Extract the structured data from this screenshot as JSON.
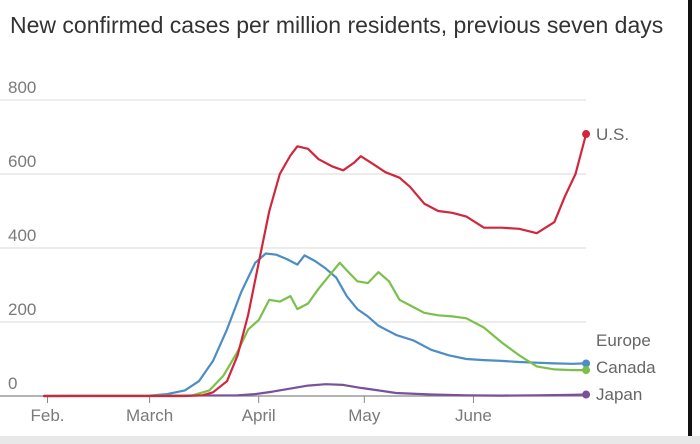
{
  "chart_data": {
    "type": "line",
    "title": "New confirmed cases per million residents, previous seven days",
    "xlabel": "",
    "ylabel": "",
    "ylim": [
      0,
      800
    ],
    "yticks": [
      0,
      200,
      400,
      600,
      800
    ],
    "x_ticks": [
      {
        "label": "Feb.",
        "day": 1
      },
      {
        "label": "March",
        "day": 30
      },
      {
        "label": "April",
        "day": 61
      },
      {
        "label": "May",
        "day": 91
      },
      {
        "label": "June",
        "day": 122
      }
    ],
    "x_range": [
      0,
      147
    ],
    "grid": true,
    "legend": "inline labels at right end of lines",
    "series": [
      {
        "name": "U.S.",
        "color": "#d0273d",
        "points": [
          [
            0,
            0
          ],
          [
            40,
            0
          ],
          [
            45,
            2
          ],
          [
            48,
            10
          ],
          [
            52,
            40
          ],
          [
            55,
            110
          ],
          [
            58,
            220
          ],
          [
            61,
            360
          ],
          [
            64,
            500
          ],
          [
            67,
            600
          ],
          [
            70,
            650
          ],
          [
            72,
            675
          ],
          [
            75,
            668
          ],
          [
            78,
            640
          ],
          [
            82,
            620
          ],
          [
            85,
            610
          ],
          [
            88,
            630
          ],
          [
            90,
            648
          ],
          [
            93,
            630
          ],
          [
            97,
            605
          ],
          [
            101,
            590
          ],
          [
            104,
            565
          ],
          [
            108,
            520
          ],
          [
            112,
            500
          ],
          [
            116,
            495
          ],
          [
            120,
            485
          ],
          [
            125,
            455
          ],
          [
            130,
            455
          ],
          [
            135,
            452
          ],
          [
            140,
            440
          ],
          [
            145,
            470
          ],
          [
            148,
            540
          ],
          [
            151,
            600
          ],
          [
            154,
            708
          ]
        ]
      },
      {
        "name": "Europe",
        "color": "#4b8dc4",
        "points": [
          [
            0,
            0
          ],
          [
            30,
            1
          ],
          [
            35,
            5
          ],
          [
            40,
            15
          ],
          [
            44,
            40
          ],
          [
            48,
            95
          ],
          [
            52,
            180
          ],
          [
            56,
            280
          ],
          [
            60,
            360
          ],
          [
            63,
            385
          ],
          [
            66,
            382
          ],
          [
            69,
            370
          ],
          [
            72,
            355
          ],
          [
            74,
            380
          ],
          [
            77,
            365
          ],
          [
            80,
            345
          ],
          [
            83,
            320
          ],
          [
            86,
            270
          ],
          [
            89,
            235
          ],
          [
            92,
            215
          ],
          [
            95,
            190
          ],
          [
            100,
            165
          ],
          [
            105,
            150
          ],
          [
            110,
            125
          ],
          [
            115,
            110
          ],
          [
            120,
            100
          ],
          [
            125,
            97
          ],
          [
            130,
            95
          ],
          [
            135,
            92
          ],
          [
            140,
            90
          ],
          [
            145,
            88
          ],
          [
            150,
            87
          ],
          [
            154,
            88
          ]
        ]
      },
      {
        "name": "Canada",
        "color": "#7cc04c",
        "points": [
          [
            0,
            0
          ],
          [
            42,
            1
          ],
          [
            47,
            15
          ],
          [
            51,
            55
          ],
          [
            55,
            120
          ],
          [
            58,
            180
          ],
          [
            61,
            205
          ],
          [
            64,
            260
          ],
          [
            67,
            255
          ],
          [
            70,
            270
          ],
          [
            72,
            235
          ],
          [
            75,
            250
          ],
          [
            78,
            290
          ],
          [
            81,
            325
          ],
          [
            84,
            360
          ],
          [
            86,
            340
          ],
          [
            89,
            310
          ],
          [
            92,
            305
          ],
          [
            95,
            335
          ],
          [
            98,
            310
          ],
          [
            101,
            260
          ],
          [
            104,
            245
          ],
          [
            108,
            225
          ],
          [
            112,
            218
          ],
          [
            116,
            215
          ],
          [
            120,
            210
          ],
          [
            125,
            185
          ],
          [
            130,
            145
          ],
          [
            135,
            110
          ],
          [
            140,
            80
          ],
          [
            145,
            72
          ],
          [
            150,
            70
          ],
          [
            154,
            70
          ]
        ]
      },
      {
        "name": "Japan",
        "color": "#7a4f9b",
        "points": [
          [
            0,
            0
          ],
          [
            55,
            2
          ],
          [
            60,
            5
          ],
          [
            65,
            12
          ],
          [
            70,
            20
          ],
          [
            75,
            28
          ],
          [
            80,
            32
          ],
          [
            85,
            30
          ],
          [
            90,
            22
          ],
          [
            95,
            15
          ],
          [
            100,
            8
          ],
          [
            110,
            4
          ],
          [
            120,
            2
          ],
          [
            130,
            1
          ],
          [
            140,
            2
          ],
          [
            150,
            3
          ],
          [
            154,
            4
          ]
        ]
      }
    ]
  }
}
